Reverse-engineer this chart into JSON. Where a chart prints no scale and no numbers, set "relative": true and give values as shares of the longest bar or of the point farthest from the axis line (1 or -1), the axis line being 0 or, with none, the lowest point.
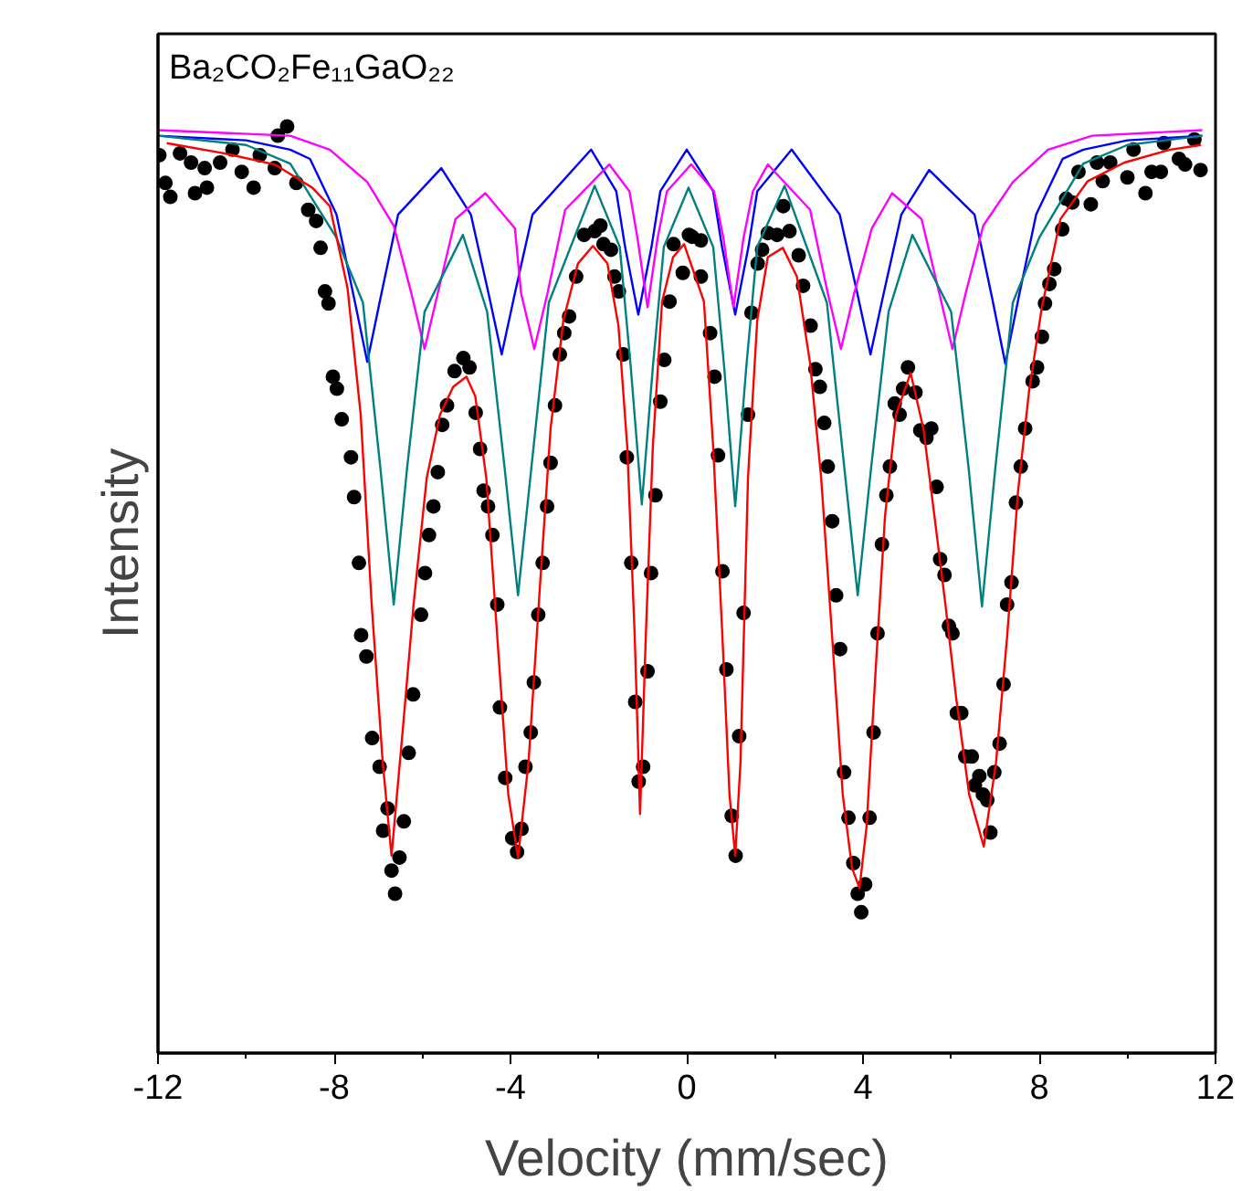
{
  "chart_data": {
    "type": "line",
    "relative": true,
    "xlabel": "Velocity (mm/sec)",
    "ylabel": "Intensity",
    "annotations": [
      "Ba₂CO₂Fe₁₁GaO₂₂"
    ],
    "xlim": [
      -12,
      12
    ],
    "xticks": [
      -12,
      -8,
      -4,
      0,
      4,
      8,
      12
    ],
    "series": [
      {
        "type": "scatter",
        "marker": "circle",
        "color": "#000000",
        "x": [
          -11.97,
          -11.83,
          -11.72,
          -11.5,
          -11.25,
          -11.16,
          -10.94,
          -10.89,
          -10.59,
          -10.31,
          -10.1,
          -9.83,
          -9.69,
          -9.35,
          -9.28,
          -9.07,
          -8.86,
          -8.59,
          -8.41,
          -8.31,
          -8.21,
          -8.13,
          -8.03,
          -7.94,
          -7.83,
          -7.62,
          -7.55,
          -7.44,
          -7.39,
          -7.27,
          -7.14,
          -6.97,
          -6.89,
          -6.79,
          -6.7,
          -6.62,
          -6.52,
          -6.42,
          -6.31,
          -6.21,
          -6.03,
          -5.94,
          -5.85,
          -5.75,
          -5.65,
          -5.55,
          -5.44,
          -5.27,
          -5.07,
          -4.93,
          -4.79,
          -4.69,
          -4.61,
          -4.51,
          -4.41,
          -4.3,
          -4.24,
          -4.12,
          -3.96,
          -3.85,
          -3.75,
          -3.66,
          -3.54,
          -3.47,
          -3.37,
          -3.27,
          -3.17,
          -3.09,
          -2.99,
          -2.88,
          -2.78,
          -2.67,
          -2.51,
          -2.33,
          -2.09,
          -1.96,
          -1.89,
          -1.72,
          -1.64,
          -1.54,
          -1.44,
          -1.36,
          -1.26,
          -1.17,
          -1.09,
          -0.99,
          -0.89,
          -0.81,
          -0.71,
          -0.6,
          -0.51,
          -0.39,
          -0.3,
          -0.09,
          0.05,
          0.12,
          0.32,
          0.32,
          0.53,
          0.63,
          0.71,
          0.81,
          0.9,
          1.02,
          1.11,
          1.19,
          1.29,
          1.39,
          1.47,
          1.61,
          1.71,
          1.84,
          2.05,
          2.19,
          2.33,
          2.54,
          2.64,
          2.81,
          2.92,
          3.02,
          3.12,
          3.2,
          3.3,
          3.39,
          3.48,
          3.57,
          3.67,
          3.78,
          3.88,
          3.96,
          4.05,
          4.15,
          4.24,
          4.33,
          4.43,
          4.53,
          4.61,
          4.72,
          4.83,
          4.91,
          5.02,
          5.19,
          5.3,
          5.44,
          5.55,
          5.67,
          5.75,
          5.85,
          5.95,
          6.03,
          6.13,
          6.23,
          6.32,
          6.47,
          6.54,
          6.64,
          6.72,
          6.82,
          6.89,
          6.98,
          7.1,
          7.19,
          7.27,
          7.37,
          7.47,
          7.58,
          7.68,
          7.85,
          7.95,
          8.06,
          8.13,
          8.23,
          8.34,
          8.52,
          8.61,
          8.75,
          8.89,
          9.17,
          9.31,
          9.44,
          9.61,
          10.0,
          10.14,
          10.41,
          10.55,
          10.76,
          10.83,
          11.17,
          11.31,
          11.52,
          11.66
        ],
        "values": [
          0.969,
          0.939,
          0.924,
          0.971,
          0.961,
          0.928,
          0.955,
          0.934,
          0.961,
          0.975,
          0.951,
          0.934,
          0.969,
          0.955,
          0.99,
          1.0,
          0.939,
          0.91,
          0.898,
          0.869,
          0.822,
          0.809,
          0.73,
          0.717,
          0.684,
          0.643,
          0.6,
          0.529,
          0.451,
          0.428,
          0.34,
          0.309,
          0.24,
          0.264,
          0.197,
          0.172,
          0.211,
          0.25,
          0.324,
          0.387,
          0.473,
          0.518,
          0.559,
          0.59,
          0.627,
          0.678,
          0.699,
          0.736,
          0.75,
          0.74,
          0.691,
          0.652,
          0.607,
          0.59,
          0.559,
          0.484,
          0.373,
          0.297,
          0.232,
          0.217,
          0.242,
          0.309,
          0.346,
          0.4,
          0.473,
          0.529,
          0.59,
          0.637,
          0.699,
          0.754,
          0.777,
          0.795,
          0.838,
          0.883,
          0.887,
          0.893,
          0.873,
          0.867,
          0.838,
          0.822,
          0.754,
          0.643,
          0.529,
          0.379,
          0.293,
          0.309,
          0.412,
          0.518,
          0.602,
          0.703,
          0.748,
          0.811,
          0.873,
          0.842,
          0.883,
          0.881,
          0.877,
          0.838,
          0.777,
          0.73,
          0.645,
          0.52,
          0.414,
          0.256,
          0.213,
          0.342,
          0.475,
          0.689,
          0.799,
          0.852,
          0.867,
          0.885,
          0.883,
          0.914,
          0.887,
          0.861,
          0.828,
          0.785,
          0.738,
          0.719,
          0.68,
          0.633,
          0.574,
          0.494,
          0.436,
          0.303,
          0.254,
          0.205,
          0.172,
          0.152,
          0.182,
          0.254,
          0.346,
          0.453,
          0.549,
          0.602,
          0.633,
          0.701,
          0.689,
          0.717,
          0.74,
          0.713,
          0.672,
          0.664,
          0.674,
          0.611,
          0.533,
          0.516,
          0.461,
          0.453,
          0.367,
          0.367,
          0.32,
          0.32,
          0.289,
          0.299,
          0.279,
          0.273,
          0.238,
          0.303,
          0.334,
          0.398,
          0.484,
          0.508,
          0.594,
          0.633,
          0.674,
          0.725,
          0.74,
          0.773,
          0.809,
          0.83,
          0.846,
          0.889,
          0.922,
          0.918,
          0.951,
          0.916,
          0.961,
          0.941,
          0.961,
          0.945,
          0.975,
          0.928,
          0.951,
          0.951,
          0.982,
          0.965,
          0.959,
          0.986,
          0.953
        ]
      },
      {
        "color": "#0000ff",
        "x": [
          -12,
          -10,
          -9,
          -8.55,
          -7.95,
          -7.55,
          -7.25,
          -6.95,
          -6.55,
          -5.57,
          -4.9,
          -4.5,
          -4.2,
          -3.9,
          -3.5,
          -2.17,
          -1.6,
          -1.4,
          -1.1,
          -0.8,
          -0.6,
          0,
          0.6,
          0.8,
          1.1,
          1.4,
          1.6,
          2.38,
          3.47,
          3.87,
          4.17,
          4.47,
          4.87,
          5.5,
          6.53,
          6.93,
          7.23,
          7.53,
          7.93,
          8.53,
          9,
          10,
          11.7
        ],
        "values": [
          0.99,
          0.985,
          0.975,
          0.965,
          0.905,
          0.815,
          0.746,
          0.815,
          0.905,
          0.955,
          0.905,
          0.82,
          0.754,
          0.82,
          0.905,
          0.975,
          0.93,
          0.87,
          0.797,
          0.87,
          0.93,
          0.975,
          0.93,
          0.87,
          0.797,
          0.87,
          0.93,
          0.975,
          0.905,
          0.82,
          0.754,
          0.82,
          0.905,
          0.953,
          0.905,
          0.815,
          0.744,
          0.815,
          0.905,
          0.965,
          0.975,
          0.985,
          0.99
        ]
      },
      {
        "color": "#ff00ff",
        "x": [
          -12,
          -9,
          -8.1,
          -7.25,
          -6.65,
          -6.25,
          -5.95,
          -5.65,
          -5.25,
          -4.57,
          -3.9,
          -3.76,
          -3.46,
          -3.16,
          -2.76,
          -1.76,
          -1.3,
          -1.12,
          -0.89,
          -0.66,
          -0.45,
          0.1,
          0.62,
          0.83,
          1.06,
          1.29,
          1.5,
          1.84,
          2.8,
          3.2,
          3.5,
          3.8,
          4.2,
          4.66,
          5.33,
          5.73,
          6.03,
          6.33,
          6.73,
          7.4,
          8.2,
          9.2,
          11.7
        ],
        "values": [
          0.996,
          0.99,
          0.975,
          0.94,
          0.893,
          0.82,
          0.76,
          0.82,
          0.9,
          0.928,
          0.89,
          0.82,
          0.76,
          0.82,
          0.91,
          0.959,
          0.93,
          0.88,
          0.805,
          0.88,
          0.93,
          0.959,
          0.93,
          0.88,
          0.805,
          0.88,
          0.93,
          0.959,
          0.91,
          0.82,
          0.76,
          0.82,
          0.89,
          0.928,
          0.9,
          0.82,
          0.76,
          0.82,
          0.893,
          0.94,
          0.975,
          0.99,
          0.996
        ]
      },
      {
        "color": "#008080",
        "x": [
          -12,
          -10,
          -9,
          -7.95,
          -7.35,
          -6.95,
          -6.65,
          -6.35,
          -5.95,
          -5.08,
          -4.53,
          -4.13,
          -3.83,
          -3.53,
          -3.13,
          -2.09,
          -1.52,
          -1.27,
          -1.02,
          -0.77,
          -0.52,
          0.04,
          0.6,
          0.85,
          1.1,
          1.35,
          1.6,
          2.22,
          3.18,
          3.58,
          3.88,
          4.18,
          4.58,
          5.12,
          6.0,
          6.4,
          6.7,
          7.0,
          7.4,
          8.0,
          9.0,
          10,
          11.7
        ],
        "values": [
          0.99,
          0.98,
          0.96,
          0.88,
          0.81,
          0.63,
          0.484,
          0.63,
          0.8,
          0.883,
          0.8,
          0.63,
          0.494,
          0.63,
          0.81,
          0.936,
          0.87,
          0.74,
          0.592,
          0.74,
          0.87,
          0.934,
          0.87,
          0.74,
          0.59,
          0.74,
          0.87,
          0.936,
          0.81,
          0.63,
          0.494,
          0.63,
          0.8,
          0.883,
          0.8,
          0.63,
          0.482,
          0.63,
          0.81,
          0.88,
          0.96,
          0.98,
          0.99
        ]
      },
      {
        "color": "#ff0000",
        "x": [
          -11.8,
          -10.5,
          -9.35,
          -8.5,
          -8.1,
          -7.7,
          -7.4,
          -7.15,
          -6.9,
          -6.7,
          -6.45,
          -6.2,
          -5.9,
          -5.6,
          -5.3,
          -5.0,
          -4.8,
          -4.55,
          -4.3,
          -4.05,
          -3.83,
          -3.59,
          -3.34,
          -3.09,
          -2.8,
          -2.47,
          -2.13,
          -1.8,
          -1.55,
          -1.35,
          -1.18,
          -1.06,
          -0.93,
          -0.77,
          -0.56,
          -0.31,
          -0.06,
          0.39,
          0.6,
          0.81,
          0.97,
          1.1,
          1.22,
          1.39,
          1.6,
          1.84,
          2.18,
          2.5,
          2.8,
          3.05,
          3.3,
          3.54,
          3.75,
          3.92,
          4.08,
          4.29,
          4.5,
          4.75,
          5.08,
          5.37,
          5.62,
          5.87,
          6.12,
          6.41,
          6.74,
          7.02,
          7.27,
          7.52,
          7.77,
          8.06,
          8.48,
          9.1,
          9.93,
          10.97,
          11.67
        ],
        "values": [
          0.982,
          0.971,
          0.959,
          0.934,
          0.914,
          0.826,
          0.689,
          0.484,
          0.314,
          0.213,
          0.346,
          0.484,
          0.621,
          0.689,
          0.719,
          0.73,
          0.709,
          0.621,
          0.449,
          0.279,
          0.211,
          0.314,
          0.498,
          0.674,
          0.791,
          0.852,
          0.871,
          0.852,
          0.785,
          0.654,
          0.449,
          0.258,
          0.449,
          0.654,
          0.811,
          0.859,
          0.873,
          0.811,
          0.654,
          0.449,
          0.279,
          0.213,
          0.314,
          0.621,
          0.791,
          0.859,
          0.869,
          0.838,
          0.744,
          0.621,
          0.449,
          0.279,
          0.2,
          0.178,
          0.244,
          0.416,
          0.58,
          0.689,
          0.734,
          0.674,
          0.58,
          0.484,
          0.381,
          0.279,
          0.223,
          0.314,
          0.449,
          0.607,
          0.715,
          0.805,
          0.9,
          0.941,
          0.961,
          0.975,
          0.98
        ]
      }
    ]
  }
}
